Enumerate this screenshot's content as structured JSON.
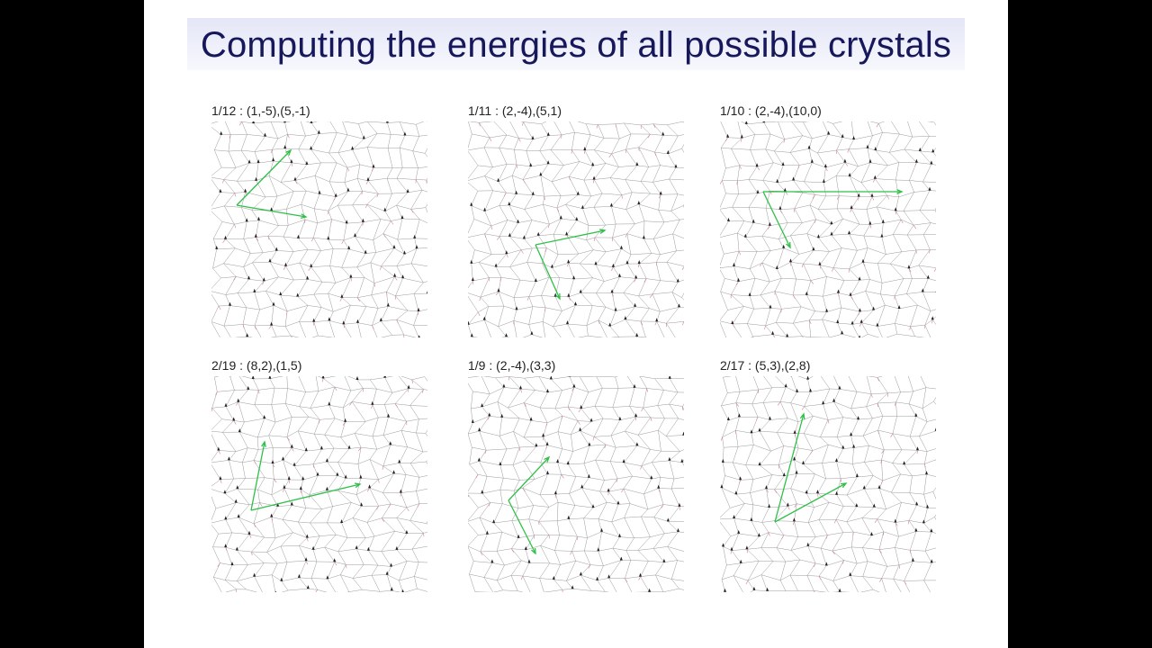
{
  "title": "Computing the energies of all possible crystals",
  "panels": [
    {
      "label": "1/12 : (1,-5),(5,-1)"
    },
    {
      "label": "1/11 : (2,-4),(5,1)"
    },
    {
      "label": "1/10 : (2,-4),(10,0)"
    },
    {
      "label": "2/19 : (8,2),(1,5)"
    },
    {
      "label": "1/9 : (2,-4),(3,3)"
    },
    {
      "label": "2/17 : (5,3),(2,8)"
    }
  ]
}
